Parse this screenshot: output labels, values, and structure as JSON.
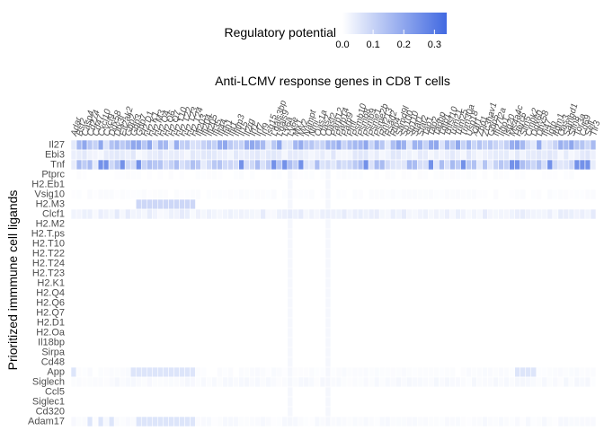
{
  "chart_data": {
    "type": "heatmap",
    "title": "Anti-LCMV response genes in CD8 T cells",
    "ylabel": "Prioritized immmune cell ligands",
    "xlabel": "",
    "legend": {
      "title": "Regulatory potential",
      "position": "top",
      "ticks": [
        "0.0",
        "0.1",
        "0.2",
        "0.3"
      ],
      "range": [
        0,
        0.34
      ],
      "low_color": "#ffffff",
      "high_color": "#4169e1"
    },
    "rows": [
      "Il27",
      "Ebi3",
      "Tnf",
      "Ptprc",
      "H2.Eb1",
      "Vsig10",
      "H2.M3",
      "Clcf1",
      "H2.M2",
      "H2.T.ps",
      "H2.T10",
      "H2.T22",
      "H2.T24",
      "H2.T23",
      "H2.K1",
      "H2.Q4",
      "H2.Q6",
      "H2.Q7",
      "H2.D1",
      "H2.Oa",
      "Il18bp",
      "Sirpa",
      "Cd48",
      "App",
      "Siglech",
      "Ccl5",
      "Siglec1",
      "Cd320",
      "Adam17"
    ],
    "columns": [
      "Adar",
      "Bst2",
      "Casp4",
      "Cd274",
      "Cd47",
      "Cxcl10",
      "Cxcl9",
      "Ddx58",
      "Dtx3l",
      "Eif2ak2",
      "Gbp2",
      "Gbp3",
      "Gbp7",
      "H2.D1",
      "H2.K1",
      "H2.M3",
      "H2.Q4",
      "H2.Q6",
      "H2.Q7",
      "H2.T10",
      "H2.T22",
      "H2.T23",
      "H2.T24",
      "Ifi203",
      "Ifi204",
      "Ifi205",
      "Ifi35",
      "Ifi44",
      "Ifih1",
      "Ifit1",
      "Ifitm3",
      "Il15",
      "Il2rg",
      "Irf1",
      "Irf7",
      "Irf9",
      "Isg15",
      "Lgals3bp",
      "Lgals9",
      "Ly6a",
      "Ly6e",
      "Mx1",
      "Mx2",
      "Nampt",
      "Nmi",
      "Oas1a",
      "Oas2",
      "Oasl2",
      "Parp12",
      "Parp14",
      "Parp9",
      "Pml",
      "Psmb10",
      "Psmb8",
      "Psmb9",
      "Psme1",
      "Psme2b",
      "Rnf213",
      "Rsad2",
      "Rtp4",
      "Samd9l",
      "Sp100",
      "Sp110",
      "Stat1",
      "Stat2",
      "Tap1",
      "Tap2",
      "Tapbp",
      "Tgtp1",
      "Tnfsf10",
      "Trim21",
      "Trim25",
      "Trim30a",
      "Usp18",
      "Xaf1",
      "Zbp1",
      "Zc3hav1",
      "Gbp5",
      "Ifi27l2a",
      "Iigp1",
      "Isg20",
      "Ms4a4c",
      "Herc6",
      "Slfn5",
      "Cmpk2",
      "Ddx60",
      "Dhx58",
      "Ifi47",
      "Igtp",
      "Irgm1",
      "Oas3",
      "Samhd1",
      "Slfn8",
      "Tor3a",
      "Cd69",
      "Sell",
      "Tlr3"
    ],
    "values_note": "",
    "ylim": [
      0,
      0.34
    ]
  }
}
